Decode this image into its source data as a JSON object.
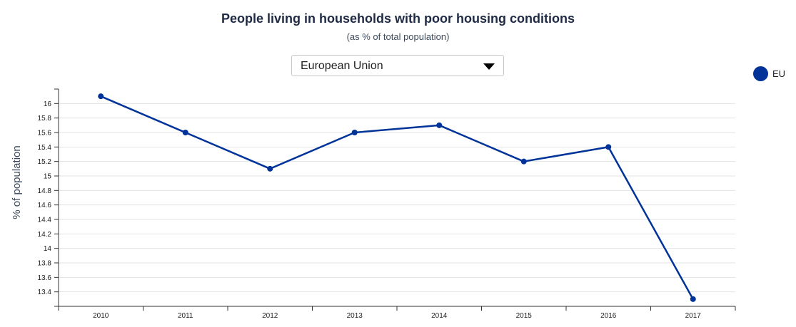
{
  "chart_data": {
    "type": "line",
    "title": "People living in households with poor housing conditions",
    "subtitle": "(as % of total population)",
    "ylabel": "% of population",
    "xlabel": "",
    "categories": [
      "2010",
      "2011",
      "2012",
      "2013",
      "2014",
      "2015",
      "2016",
      "2017"
    ],
    "series": [
      {
        "name": "EU",
        "color": "#003399",
        "values": [
          16.1,
          15.6,
          15.1,
          15.6,
          15.7,
          15.2,
          15.4,
          13.3
        ]
      }
    ],
    "ylim": [
      13.2,
      16.2
    ],
    "yticks": [
      "13.4",
      "13.6",
      "13.8",
      "14",
      "14.2",
      "14.4",
      "14.6",
      "14.8",
      "15",
      "15.2",
      "15.4",
      "15.6",
      "15.8",
      "16"
    ],
    "grid": true,
    "legend_position": "top-right"
  },
  "selector": {
    "selected": "European Union"
  },
  "legend": {
    "label": "EU"
  }
}
